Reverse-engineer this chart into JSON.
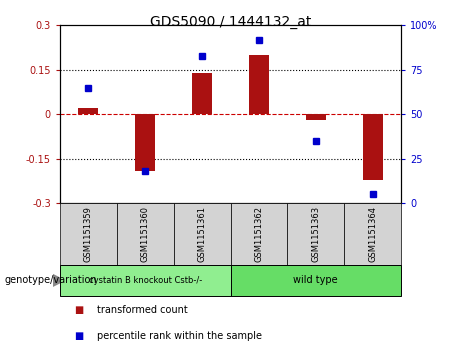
{
  "title": "GDS5090 / 1444132_at",
  "samples": [
    "GSM1151359",
    "GSM1151360",
    "GSM1151361",
    "GSM1151362",
    "GSM1151363",
    "GSM1151364"
  ],
  "bar_values": [
    0.02,
    -0.19,
    0.14,
    0.2,
    -0.02,
    -0.22
  ],
  "percentile_values": [
    65,
    18,
    83,
    92,
    35,
    5
  ],
  "ylim": [
    -0.3,
    0.3
  ],
  "yticks_left": [
    -0.3,
    -0.15,
    0,
    0.15,
    0.3
  ],
  "yticks_right": [
    0,
    25,
    50,
    75,
    100
  ],
  "bar_color": "#aa1111",
  "dot_color": "#0000cc",
  "zero_line_color": "#cc0000",
  "grid_color": "#000000",
  "group1_label": "cystatin B knockout Cstb-/-",
  "group2_label": "wild type",
  "group1_color": "#90ee90",
  "group2_color": "#66dd66",
  "genotype_label": "genotype/variation",
  "legend_bar_label": "transformed count",
  "legend_dot_label": "percentile rank within the sample",
  "sample_box_color": "#d3d3d3",
  "title_fontsize": 10,
  "tick_fontsize": 7,
  "label_fontsize": 7,
  "sample_fontsize": 6,
  "geno_fontsize": 7
}
